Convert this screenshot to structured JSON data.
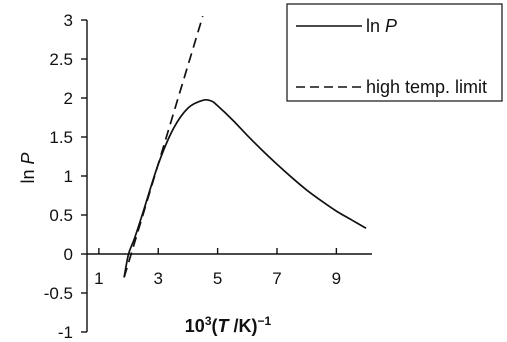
{
  "chart_data": {
    "type": "line",
    "title": "",
    "ylabel_plain": "ln",
    "ylabel_italic": "P",
    "xlabel_base": "10",
    "xlabel_sup": "3",
    "xlabel_mid": "(",
    "xlabel_italic": "T",
    "xlabel_unit": " /K)",
    "xlabel_sup2": "−1",
    "xlim": [
      0.6,
      10.2
    ],
    "ylim": [
      -1,
      3
    ],
    "x_ticks": [
      1,
      3,
      5,
      7,
      9
    ],
    "x_tick_labels": [
      "1",
      "3",
      "5",
      "7",
      "9"
    ],
    "y_ticks": [
      3,
      2.5,
      2,
      1.5,
      1,
      0.5,
      0,
      -0.5,
      -1
    ],
    "y_tick_labels": [
      "3",
      "2.5",
      "2",
      "1.5",
      "1",
      "0.5",
      "0",
      "-0.5",
      "-1"
    ],
    "grid": false,
    "legend_position": "top-right",
    "series": [
      {
        "name_plain": "ln ",
        "name_italic": "P",
        "style": "solid",
        "color": "#111111",
        "x": [
          1.85,
          2.0,
          2.2,
          2.5,
          3.0,
          3.5,
          4.0,
          4.5,
          4.8,
          5.0,
          5.5,
          6.0,
          6.5,
          7.0,
          7.5,
          8.0,
          8.5,
          9.0,
          9.5,
          10.0
        ],
        "y": [
          -0.3,
          0.0,
          0.2,
          0.55,
          1.15,
          1.6,
          1.87,
          1.97,
          1.96,
          1.9,
          1.72,
          1.52,
          1.33,
          1.15,
          0.98,
          0.82,
          0.68,
          0.55,
          0.44,
          0.33
        ]
      },
      {
        "name": "high temp. limit",
        "style": "dashed",
        "color": "#111111",
        "x": [
          1.85,
          4.5
        ],
        "y": [
          -0.3,
          3.05
        ]
      }
    ]
  }
}
